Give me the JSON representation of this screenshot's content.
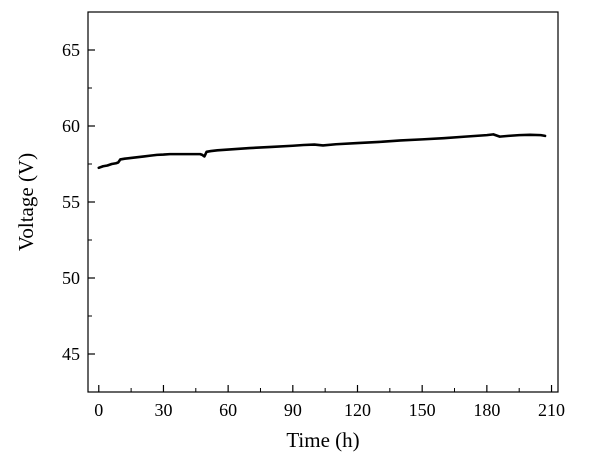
{
  "chart_data": {
    "type": "line",
    "xlabel": "Time (h)",
    "ylabel": "Voltage (V)",
    "xlim": [
      -5,
      213
    ],
    "ylim": [
      42.5,
      67.5
    ],
    "x_ticks": [
      0,
      30,
      60,
      90,
      120,
      150,
      180,
      210
    ],
    "y_ticks": [
      45,
      50,
      55,
      60,
      65
    ],
    "grid": false,
    "series": [
      {
        "color": "#000000",
        "x": [
          0,
          2,
          4,
          6,
          8,
          9,
          10,
          12,
          15,
          18,
          21,
          24,
          27,
          30,
          33,
          36,
          40,
          44,
          47,
          48,
          49,
          50,
          52,
          55,
          60,
          70,
          80,
          90,
          95,
          100,
          104,
          110,
          120,
          130,
          140,
          150,
          160,
          170,
          180,
          183,
          186,
          190,
          195,
          200,
          205,
          207
        ],
        "y": [
          57.25,
          57.35,
          57.4,
          57.5,
          57.55,
          57.6,
          57.8,
          57.85,
          57.9,
          57.95,
          58.0,
          58.05,
          58.1,
          58.12,
          58.15,
          58.15,
          58.15,
          58.15,
          58.15,
          58.1,
          58.0,
          58.3,
          58.35,
          58.4,
          58.45,
          58.55,
          58.62,
          58.7,
          58.75,
          58.78,
          58.72,
          58.8,
          58.88,
          58.95,
          59.05,
          59.12,
          59.2,
          59.3,
          59.4,
          59.45,
          59.3,
          59.35,
          59.4,
          59.42,
          59.4,
          59.35
        ]
      }
    ]
  }
}
